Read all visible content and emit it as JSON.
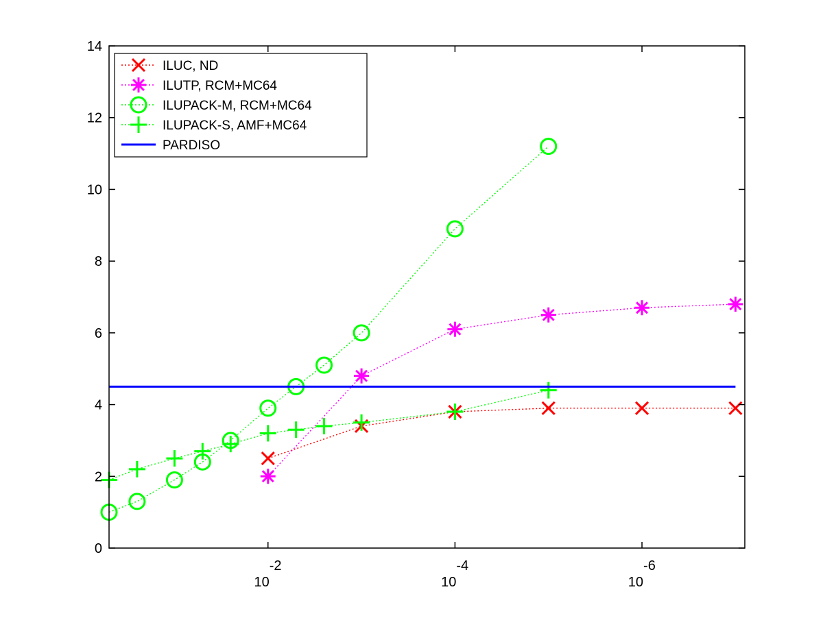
{
  "chart_data": {
    "type": "line",
    "title": "",
    "xlabel": "",
    "ylabel": "",
    "x_scale": "log10",
    "x_direction": "decreasing",
    "xlim_exponent": [
      -0.3,
      -7.1
    ],
    "ylim": [
      0,
      14
    ],
    "y_ticks": [
      0,
      2,
      4,
      6,
      8,
      10,
      12,
      14
    ],
    "x_ticks": [
      {
        "exponent": -2,
        "base": "10",
        "power": "-2"
      },
      {
        "exponent": -4,
        "base": "10",
        "power": "-4"
      },
      {
        "exponent": -6,
        "base": "10",
        "power": "-6"
      }
    ],
    "grid": false,
    "legend_position": "top-left",
    "series": [
      {
        "name": "ILUC,  ND",
        "color": "#ff0000",
        "marker": "x",
        "line": "dotted",
        "points": [
          [
            -2,
            2.5
          ],
          [
            -3,
            3.4
          ],
          [
            -4,
            3.8
          ],
          [
            -5,
            3.9
          ],
          [
            -6,
            3.9
          ],
          [
            -7,
            3.9
          ]
        ]
      },
      {
        "name": "ILUTP, RCM+MC64",
        "color": "#ff00ff",
        "marker": "asterisk",
        "line": "dotted",
        "points": [
          [
            -2,
            2.0
          ],
          [
            -3,
            4.8
          ],
          [
            -4,
            6.1
          ],
          [
            -5,
            6.5
          ],
          [
            -6,
            6.7
          ],
          [
            -7,
            6.8
          ]
        ]
      },
      {
        "name": "ILUPACK-M, RCM+MC64",
        "color": "#00ff00",
        "marker": "circle",
        "line": "dotted",
        "points": [
          [
            -0.3,
            1.0
          ],
          [
            -0.6,
            1.3
          ],
          [
            -1.0,
            1.9
          ],
          [
            -1.3,
            2.4
          ],
          [
            -1.6,
            3.0
          ],
          [
            -2.0,
            3.9
          ],
          [
            -2.3,
            4.5
          ],
          [
            -2.6,
            5.1
          ],
          [
            -3.0,
            6.0
          ],
          [
            -4.0,
            8.9
          ],
          [
            -5.0,
            11.2
          ]
        ]
      },
      {
        "name": "ILUPACK-S, AMF+MC64",
        "color": "#00ff00",
        "marker": "plus",
        "line": "dotted",
        "points": [
          [
            -0.3,
            1.9
          ],
          [
            -0.6,
            2.2
          ],
          [
            -1.0,
            2.5
          ],
          [
            -1.3,
            2.7
          ],
          [
            -1.6,
            2.9
          ],
          [
            -2.0,
            3.2
          ],
          [
            -2.3,
            3.3
          ],
          [
            -2.6,
            3.4
          ],
          [
            -3.0,
            3.5
          ],
          [
            -4.0,
            3.8
          ],
          [
            -5.0,
            4.4
          ]
        ]
      },
      {
        "name": "PARDISO",
        "color": "#0000ff",
        "marker": "none",
        "line": "solid",
        "points": [
          [
            -0.3,
            4.5
          ],
          [
            -7.0,
            4.5
          ]
        ]
      }
    ]
  }
}
